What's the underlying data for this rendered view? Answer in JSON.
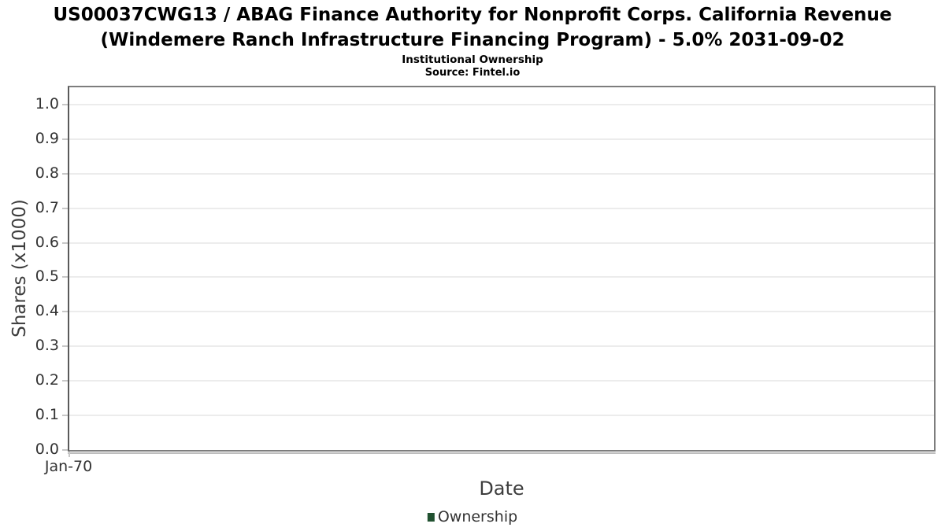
{
  "chart_data": {
    "type": "line",
    "title_line1": "US00037CWG13 / ABAG Finance Authority for Nonprofit Corps. California Revenue",
    "title_line2": "(Windemere Ranch Infrastructure Financing Program) - 5.0% 2031-09-02",
    "subtitle": "Institutional Ownership",
    "source": "Source: Fintel.io",
    "xlabel": "Date",
    "ylabel": "Shares (x1000)",
    "xticks": [
      "Jan-70"
    ],
    "yticks": [
      "0.0",
      "0.1",
      "0.2",
      "0.3",
      "0.4",
      "0.5",
      "0.6",
      "0.7",
      "0.8",
      "0.9",
      "1.0"
    ],
    "ylim": [
      0,
      1.05
    ],
    "grid": true,
    "legend_position": "bottom-center",
    "legend": [
      {
        "label": "Ownership",
        "color": "#215130"
      }
    ],
    "series": [
      {
        "name": "Ownership",
        "x": [],
        "values": []
      }
    ],
    "colors": {
      "legend_marker": "#215130",
      "plot_border": "#7d7d7d",
      "gridline": "#ececec",
      "tick": "#c8c8c8",
      "tick_label": "#333333",
      "axis_title": "#3d3d3d",
      "title_text": "#000000"
    }
  }
}
